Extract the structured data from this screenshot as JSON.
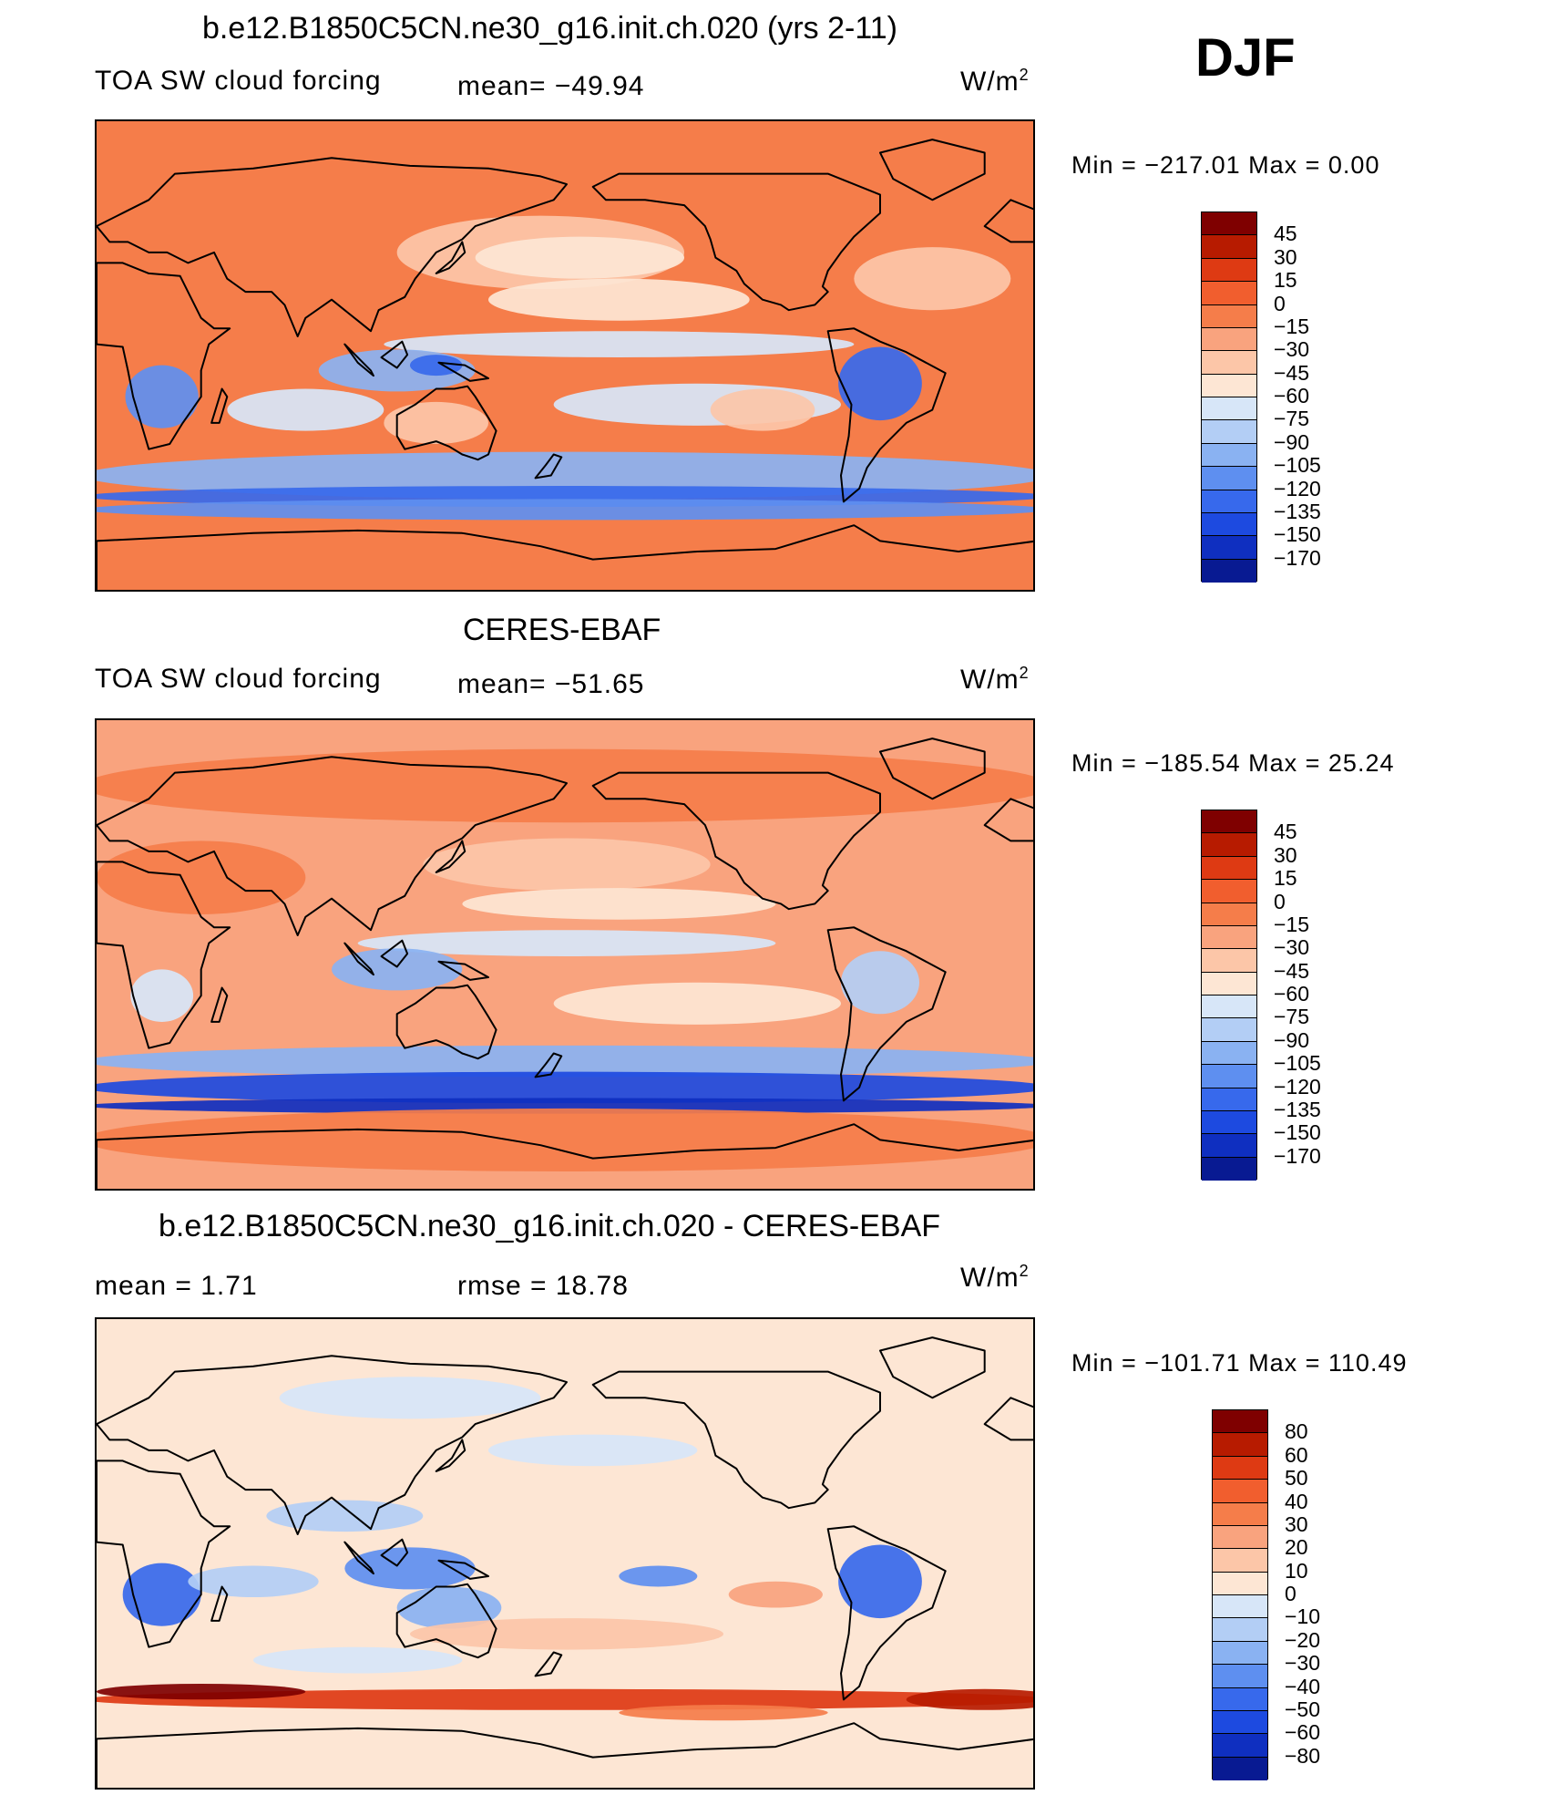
{
  "season": "DJF",
  "palette": {
    "abs": [
      "#7f0000",
      "#b71b00",
      "#de3a13",
      "#f15e2e",
      "#f57d4a",
      "#f9a37e",
      "#fcc6a8",
      "#fde6d4",
      "#d7e6f8",
      "#b3cef5",
      "#8ab2f2",
      "#5e8ff0",
      "#3769ec",
      "#1d4ae0",
      "#0f2fc0",
      "#081a92"
    ],
    "diff": [
      "#7f0000",
      "#b71b00",
      "#de3a13",
      "#f15e2e",
      "#f57d4a",
      "#f9a37e",
      "#fcc6a8",
      "#fde6d4",
      "#d7e6f8",
      "#b3cef5",
      "#8ab2f2",
      "#5e8ff0",
      "#3769ec",
      "#1d4ae0",
      "#0f2fc0",
      "#081a92"
    ],
    "outline": "#000000",
    "background": "#ffffff"
  },
  "panels": [
    {
      "title": "b.e12.B1850C5CN.ne30_g16.init.ch.020 (yrs 2-11)",
      "left_text": "TOA SW cloud forcing",
      "center_text": "mean= −49.94",
      "units_base": "W/m",
      "units_exp": "2",
      "minmax": "Min  =  −217.01  Max  =     0.00",
      "colorbar": [
        "45",
        "30",
        "15",
        "0",
        "−15",
        "−30",
        "−45",
        "−60",
        "−75",
        "−90",
        "−105",
        "−120",
        "−135",
        "−150",
        "−170"
      ],
      "bg_color": "#f57d4a",
      "blobs": [
        {
          "lat": 40,
          "lon": 170,
          "rx": 55,
          "ry": 14,
          "c": "#fcc6a8"
        },
        {
          "lat": 38,
          "lon": 185,
          "rx": 40,
          "ry": 8,
          "c": "#fde6d4"
        },
        {
          "lat": 22,
          "lon": 200,
          "rx": 50,
          "ry": 8,
          "c": "#fde6d4"
        },
        {
          "lat": 30,
          "lon": 320,
          "rx": 30,
          "ry": 12,
          "c": "#fcc6a8"
        },
        {
          "lat": 5,
          "lon": 200,
          "rx": 90,
          "ry": 5,
          "c": "#d7e6f8"
        },
        {
          "lat": -5,
          "lon": 115,
          "rx": 30,
          "ry": 8,
          "c": "#8ab2f2"
        },
        {
          "lat": -3,
          "lon": 130,
          "rx": 10,
          "ry": 4,
          "c": "#3769ec"
        },
        {
          "lat": -15,
          "lon": 25,
          "rx": 14,
          "ry": 12,
          "c": "#5e8ff0"
        },
        {
          "lat": -10,
          "lon": 300,
          "rx": 16,
          "ry": 14,
          "c": "#3769ec"
        },
        {
          "lat": -18,
          "lon": 230,
          "rx": 55,
          "ry": 8,
          "c": "#d7e6f8"
        },
        {
          "lat": -20,
          "lon": 80,
          "rx": 30,
          "ry": 8,
          "c": "#d7e6f8"
        },
        {
          "lat": -45,
          "lon": 180,
          "rx": 185,
          "ry": 9,
          "c": "#8ab2f2"
        },
        {
          "lat": -53,
          "lon": 180,
          "rx": 185,
          "ry": 4,
          "c": "#3769ec"
        },
        {
          "lat": -58,
          "lon": 180,
          "rx": 185,
          "ry": 4,
          "c": "#5e8ff0"
        },
        {
          "lat": -25,
          "lon": 130,
          "rx": 20,
          "ry": 8,
          "c": "#fcc6a8"
        },
        {
          "lat": -20,
          "lon": 255,
          "rx": 20,
          "ry": 8,
          "c": "#fcc6a8"
        }
      ]
    },
    {
      "title": "CERES-EBAF",
      "left_text": "TOA SW cloud forcing",
      "center_text": "mean= −51.65",
      "units_base": "W/m",
      "units_exp": "2",
      "minmax": "Min  =  −185.54  Max  =    25.24",
      "colorbar": [
        "45",
        "30",
        "15",
        "0",
        "−15",
        "−30",
        "−45",
        "−60",
        "−75",
        "−90",
        "−105",
        "−120",
        "−135",
        "−150",
        "−170"
      ],
      "bg_color": "#f9a37e",
      "blobs": [
        {
          "lat": 65,
          "lon": 180,
          "rx": 185,
          "ry": 14,
          "c": "#f57d4a"
        },
        {
          "lat": 30,
          "lon": 40,
          "rx": 40,
          "ry": 14,
          "c": "#f57d4a"
        },
        {
          "lat": 35,
          "lon": 180,
          "rx": 55,
          "ry": 10,
          "c": "#fcc6a8"
        },
        {
          "lat": 20,
          "lon": 200,
          "rx": 60,
          "ry": 6,
          "c": "#fde6d4"
        },
        {
          "lat": 5,
          "lon": 180,
          "rx": 80,
          "ry": 5,
          "c": "#d7e6f8"
        },
        {
          "lat": -5,
          "lon": 115,
          "rx": 25,
          "ry": 8,
          "c": "#8ab2f2"
        },
        {
          "lat": -10,
          "lon": 300,
          "rx": 15,
          "ry": 12,
          "c": "#b3cef5"
        },
        {
          "lat": -15,
          "lon": 25,
          "rx": 12,
          "ry": 10,
          "c": "#d7e6f8"
        },
        {
          "lat": -18,
          "lon": 230,
          "rx": 55,
          "ry": 8,
          "c": "#fde6d4"
        },
        {
          "lat": -40,
          "lon": 180,
          "rx": 185,
          "ry": 6,
          "c": "#8ab2f2"
        },
        {
          "lat": -50,
          "lon": 180,
          "rx": 185,
          "ry": 6,
          "c": "#1d4ae0"
        },
        {
          "lat": -57,
          "lon": 180,
          "rx": 185,
          "ry": 3,
          "c": "#0f2fc0"
        },
        {
          "lat": -70,
          "lon": 180,
          "rx": 185,
          "ry": 12,
          "c": "#f57d4a"
        }
      ]
    },
    {
      "title": "b.e12.B1850C5CN.ne30_g16.init.ch.020 - CERES-EBAF",
      "left_text": "mean =     1.71",
      "center_text": "rmse =    18.78",
      "units_base": "W/m",
      "units_exp": "2",
      "minmax": "Min  =  −101.71  Max  =  110.49",
      "colorbar": [
        "80",
        "60",
        "50",
        "40",
        "30",
        "20",
        "10",
        "0",
        "−10",
        "−20",
        "−30",
        "−40",
        "−50",
        "−60",
        "−80"
      ],
      "bg_color": "#fde6d4",
      "blobs": [
        {
          "lat": 60,
          "lon": 120,
          "rx": 50,
          "ry": 8,
          "c": "#d7e6f8"
        },
        {
          "lat": 40,
          "lon": 190,
          "rx": 40,
          "ry": 6,
          "c": "#d7e6f8"
        },
        {
          "lat": 15,
          "lon": 95,
          "rx": 30,
          "ry": 6,
          "c": "#b3cef5"
        },
        {
          "lat": -5,
          "lon": 120,
          "rx": 25,
          "ry": 8,
          "c": "#5e8ff0"
        },
        {
          "lat": -15,
          "lon": 25,
          "rx": 15,
          "ry": 12,
          "c": "#3769ec"
        },
        {
          "lat": -10,
          "lon": 300,
          "rx": 16,
          "ry": 14,
          "c": "#3769ec"
        },
        {
          "lat": -8,
          "lon": 215,
          "rx": 15,
          "ry": 4,
          "c": "#5e8ff0"
        },
        {
          "lat": -20,
          "lon": 135,
          "rx": 20,
          "ry": 8,
          "c": "#8ab2f2"
        },
        {
          "lat": -15,
          "lon": 260,
          "rx": 18,
          "ry": 5,
          "c": "#f9a37e"
        },
        {
          "lat": -10,
          "lon": 60,
          "rx": 25,
          "ry": 6,
          "c": "#b3cef5"
        },
        {
          "lat": -30,
          "lon": 180,
          "rx": 60,
          "ry": 6,
          "c": "#fcc6a8"
        },
        {
          "lat": -40,
          "lon": 100,
          "rx": 40,
          "ry": 5,
          "c": "#d7e6f8"
        },
        {
          "lat": -55,
          "lon": 180,
          "rx": 185,
          "ry": 4,
          "c": "#de3a13"
        },
        {
          "lat": -52,
          "lon": 40,
          "rx": 40,
          "ry": 3,
          "c": "#7f0000"
        },
        {
          "lat": -55,
          "lon": 340,
          "rx": 30,
          "ry": 4,
          "c": "#b71b00"
        },
        {
          "lat": -60,
          "lon": 240,
          "rx": 40,
          "ry": 3,
          "c": "#f57d4a"
        }
      ]
    }
  ]
}
